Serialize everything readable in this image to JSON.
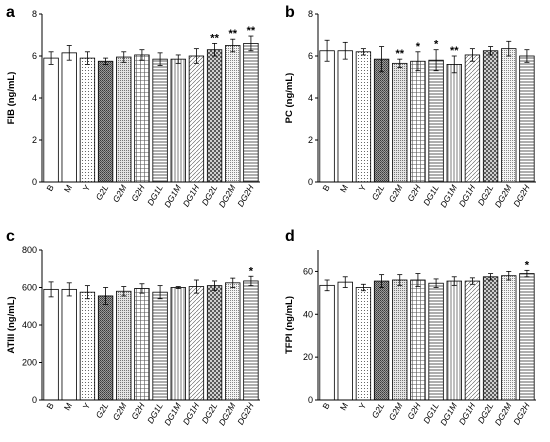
{
  "chart_data": [
    {
      "type": "bar",
      "panel": "a",
      "ylabel": "FIB (ng/mL)",
      "ylim": [
        0,
        8
      ],
      "yticks": [
        0,
        2,
        4,
        6,
        8
      ],
      "categories": [
        "B",
        "M",
        "Y",
        "G2L",
        "G2M",
        "G2H",
        "DG1L",
        "DG1M",
        "DG1H",
        "DG2L",
        "DG2M",
        "DG2H"
      ],
      "values": [
        5.9,
        6.15,
        5.9,
        5.75,
        5.95,
        6.05,
        5.85,
        5.85,
        6.0,
        6.3,
        6.5,
        6.6
      ],
      "errors": [
        0.3,
        0.35,
        0.3,
        0.15,
        0.25,
        0.25,
        0.3,
        0.2,
        0.35,
        0.3,
        0.3,
        0.35
      ],
      "significance": [
        "",
        "",
        "",
        "",
        "",
        "",
        "",
        "",
        "",
        "**",
        "**",
        "**"
      ]
    },
    {
      "type": "bar",
      "panel": "b",
      "ylabel": "PC (ng/mL)",
      "ylim": [
        0,
        8
      ],
      "yticks": [
        0,
        2,
        4,
        6,
        8
      ],
      "categories": [
        "B",
        "M",
        "Y",
        "G2L",
        "G2M",
        "G2H",
        "DG1L",
        "DG1M",
        "DG1H",
        "DG2L",
        "DG2M",
        "DG2H"
      ],
      "values": [
        6.25,
        6.25,
        6.2,
        5.85,
        5.65,
        5.75,
        5.8,
        5.6,
        6.05,
        6.25,
        6.35,
        6.0
      ],
      "errors": [
        0.5,
        0.4,
        0.15,
        0.6,
        0.2,
        0.45,
        0.5,
        0.4,
        0.3,
        0.2,
        0.35,
        0.3
      ],
      "significance": [
        "",
        "",
        "",
        "",
        "**",
        "*",
        "*",
        "**",
        "",
        "",
        "",
        ""
      ]
    },
    {
      "type": "bar",
      "panel": "c",
      "ylabel": "ATIII (ng/mL)",
      "ylim": [
        0,
        800
      ],
      "yticks": [
        0,
        200,
        400,
        600,
        800
      ],
      "categories": [
        "B",
        "M",
        "Y",
        "G2L",
        "G2M",
        "G2H",
        "DG1L",
        "DG1M",
        "DG1H",
        "DG2L",
        "DG2M",
        "DG2H"
      ],
      "values": [
        590,
        590,
        575,
        555,
        580,
        595,
        575,
        600,
        605,
        610,
        625,
        635
      ],
      "errors": [
        40,
        35,
        35,
        45,
        25,
        25,
        35,
        5,
        35,
        25,
        25,
        25
      ],
      "significance": [
        "",
        "",
        "",
        "",
        "",
        "",
        "",
        "",
        "",
        "",
        "",
        "*"
      ]
    },
    {
      "type": "bar",
      "panel": "d",
      "ylabel": "TFPI (ng/mL)",
      "ylim": [
        0,
        70
      ],
      "yticks": [
        0,
        20,
        40,
        60
      ],
      "categories": [
        "B",
        "M",
        "Y",
        "G2L",
        "G2M",
        "G2H",
        "DG1L",
        "DG1M",
        "DG1H",
        "DG2L",
        "DG2M",
        "DG2H"
      ],
      "values": [
        53.5,
        55,
        52.5,
        55.5,
        56,
        56,
        54.5,
        55.5,
        55.5,
        57.5,
        58,
        59
      ],
      "errors": [
        2.5,
        2.5,
        1.5,
        3,
        2.5,
        3,
        2,
        2,
        1.5,
        1.5,
        2,
        1.5
      ],
      "significance": [
        "",
        "",
        "",
        "",
        "",
        "",
        "",
        "",
        "",
        "",
        "",
        "*"
      ]
    }
  ]
}
